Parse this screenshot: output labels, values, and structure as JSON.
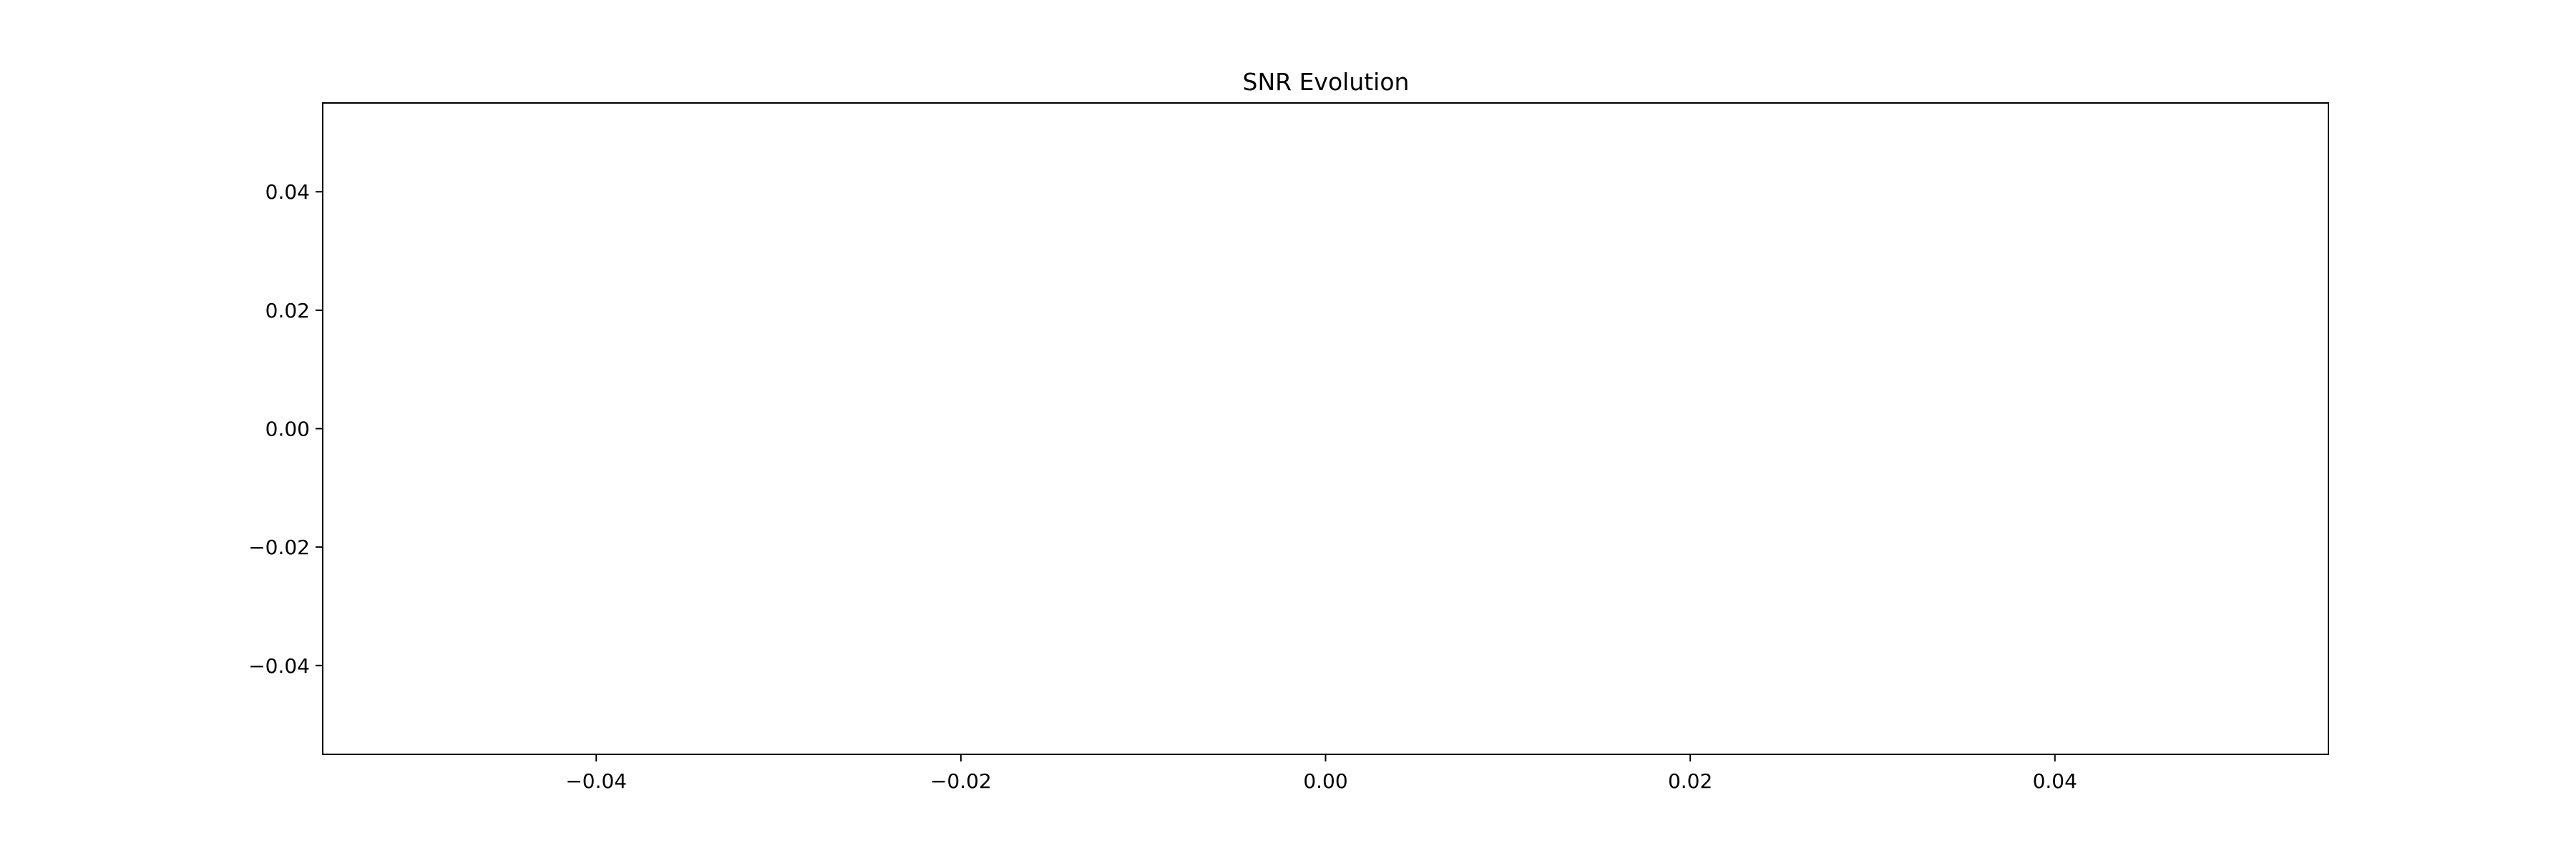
{
  "chart_data": {
    "type": "line",
    "title": "SNR Evolution",
    "xlabel": "",
    "ylabel": "",
    "xlim": [
      -0.055,
      0.055
    ],
    "ylim": [
      -0.055,
      0.055
    ],
    "x_ticks": [
      -0.04,
      -0.02,
      0.0,
      0.02,
      0.04
    ],
    "x_tick_labels": [
      "−0.04",
      "−0.02",
      "0.00",
      "0.02",
      "0.04"
    ],
    "y_ticks": [
      -0.04,
      -0.02,
      0.0,
      0.02,
      0.04
    ],
    "y_tick_labels": [
      "−0.04",
      "−0.02",
      "0.00",
      "0.02",
      "0.04"
    ],
    "grid": false,
    "series": [],
    "colors": {
      "axis": "#000000",
      "background": "#ffffff"
    }
  }
}
